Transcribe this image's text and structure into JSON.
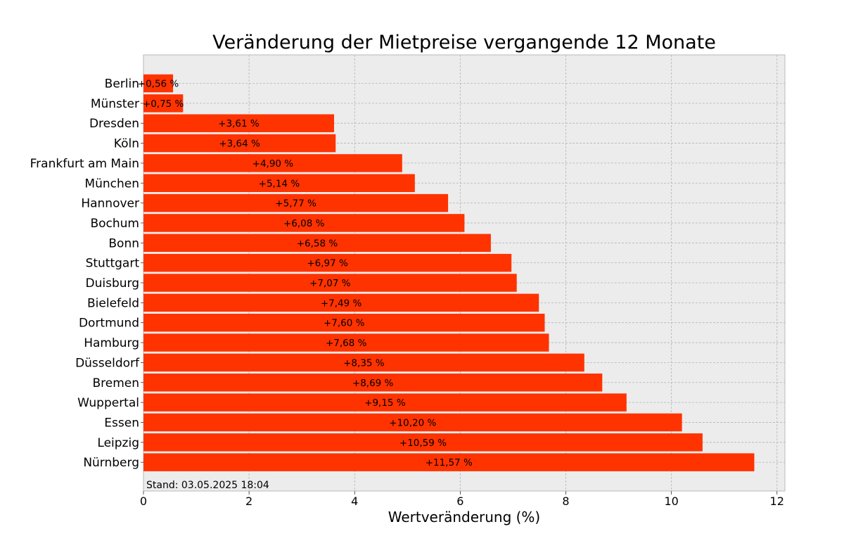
{
  "chart_data": {
    "type": "bar",
    "orientation": "horizontal",
    "title": "Veränderung der Mietpreise vergangende 12 Monate",
    "xlabel": "Wertveränderung (%)",
    "ylabel": "",
    "xlim": [
      0,
      12.15
    ],
    "xticks": [
      0,
      2,
      4,
      6,
      8,
      10,
      12
    ],
    "grid": true,
    "legend": "none",
    "footnote": "Stand: 03.05.2025 18:04",
    "colors": {
      "bar": "#ff3300",
      "plot_bg": "#ececec",
      "grid": "#b4b4b4"
    },
    "categories": [
      "Berlin",
      "Münster",
      "Dresden",
      "Köln",
      "Frankfurt am Main",
      "München",
      "Hannover",
      "Bochum",
      "Bonn",
      "Stuttgart",
      "Duisburg",
      "Bielefeld",
      "Dortmund",
      "Hamburg",
      "Düsseldorf",
      "Bremen",
      "Wuppertal",
      "Essen",
      "Leipzig",
      "Nürnberg"
    ],
    "values": [
      0.56,
      0.75,
      3.61,
      3.64,
      4.9,
      5.14,
      5.77,
      6.08,
      6.58,
      6.97,
      7.07,
      7.49,
      7.6,
      7.68,
      8.35,
      8.69,
      9.15,
      10.2,
      10.59,
      11.57
    ],
    "value_labels": [
      "+0,56 %",
      "+0,75 %",
      "+3,61 %",
      "+3,64 %",
      "+4,90 %",
      "+5,14 %",
      "+5,77 %",
      "+6,08 %",
      "+6,58 %",
      "+6,97 %",
      "+7,07 %",
      "+7,49 %",
      "+7,60 %",
      "+7,68 %",
      "+8,35 %",
      "+8,69 %",
      "+9,15 %",
      "+10,20 %",
      "+10,59 %",
      "+11,57 %"
    ]
  }
}
